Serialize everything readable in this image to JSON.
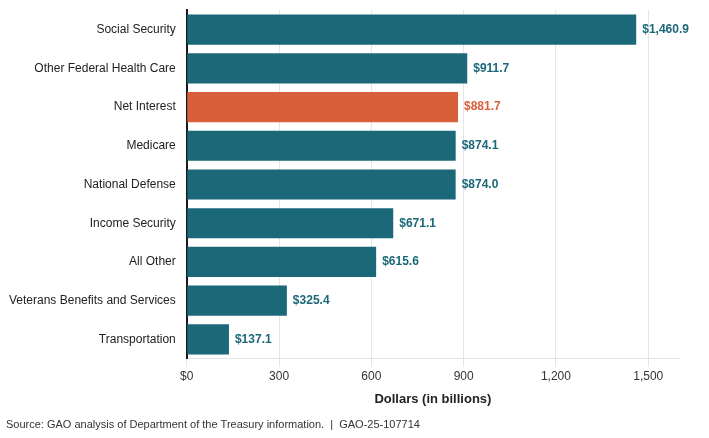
{
  "chart_data": {
    "type": "bar",
    "orientation": "horizontal",
    "categories": [
      "Social Security",
      "Other Federal Health Care",
      "Net Interest",
      "Medicare",
      "National Defense",
      "Income Security",
      "All Other",
      "Veterans Benefits and Services",
      "Transportation"
    ],
    "values": [
      1460.9,
      911.7,
      881.7,
      874.1,
      874.0,
      671.1,
      615.6,
      325.4,
      137.1
    ],
    "value_labels": [
      "$1,460.9",
      "$911.7",
      "$881.7",
      "$874.1",
      "$874.0",
      "$671.1",
      "$615.6",
      "$325.4",
      "$137.1"
    ],
    "data_labels": true,
    "colors": [
      "#1a6878",
      "#1a6878",
      "#d95f3b",
      "#1a6878",
      "#1a6878",
      "#1a6878",
      "#1a6878",
      "#1a6878",
      "#1a6878"
    ],
    "x_label": "Dollars (in billions)",
    "xlim": [
      0,
      1600
    ],
    "xticks": [
      {
        "value": 0,
        "label": "$0"
      },
      300,
      600,
      900,
      {
        "value": 1200,
        "label": "1,200"
      },
      {
        "value": 1500,
        "label": "1,500"
      }
    ],
    "grid": true,
    "annotations": [
      "Source: GAO analysis of Department of the Treasury information.  |  GAO-25-107714"
    ]
  }
}
